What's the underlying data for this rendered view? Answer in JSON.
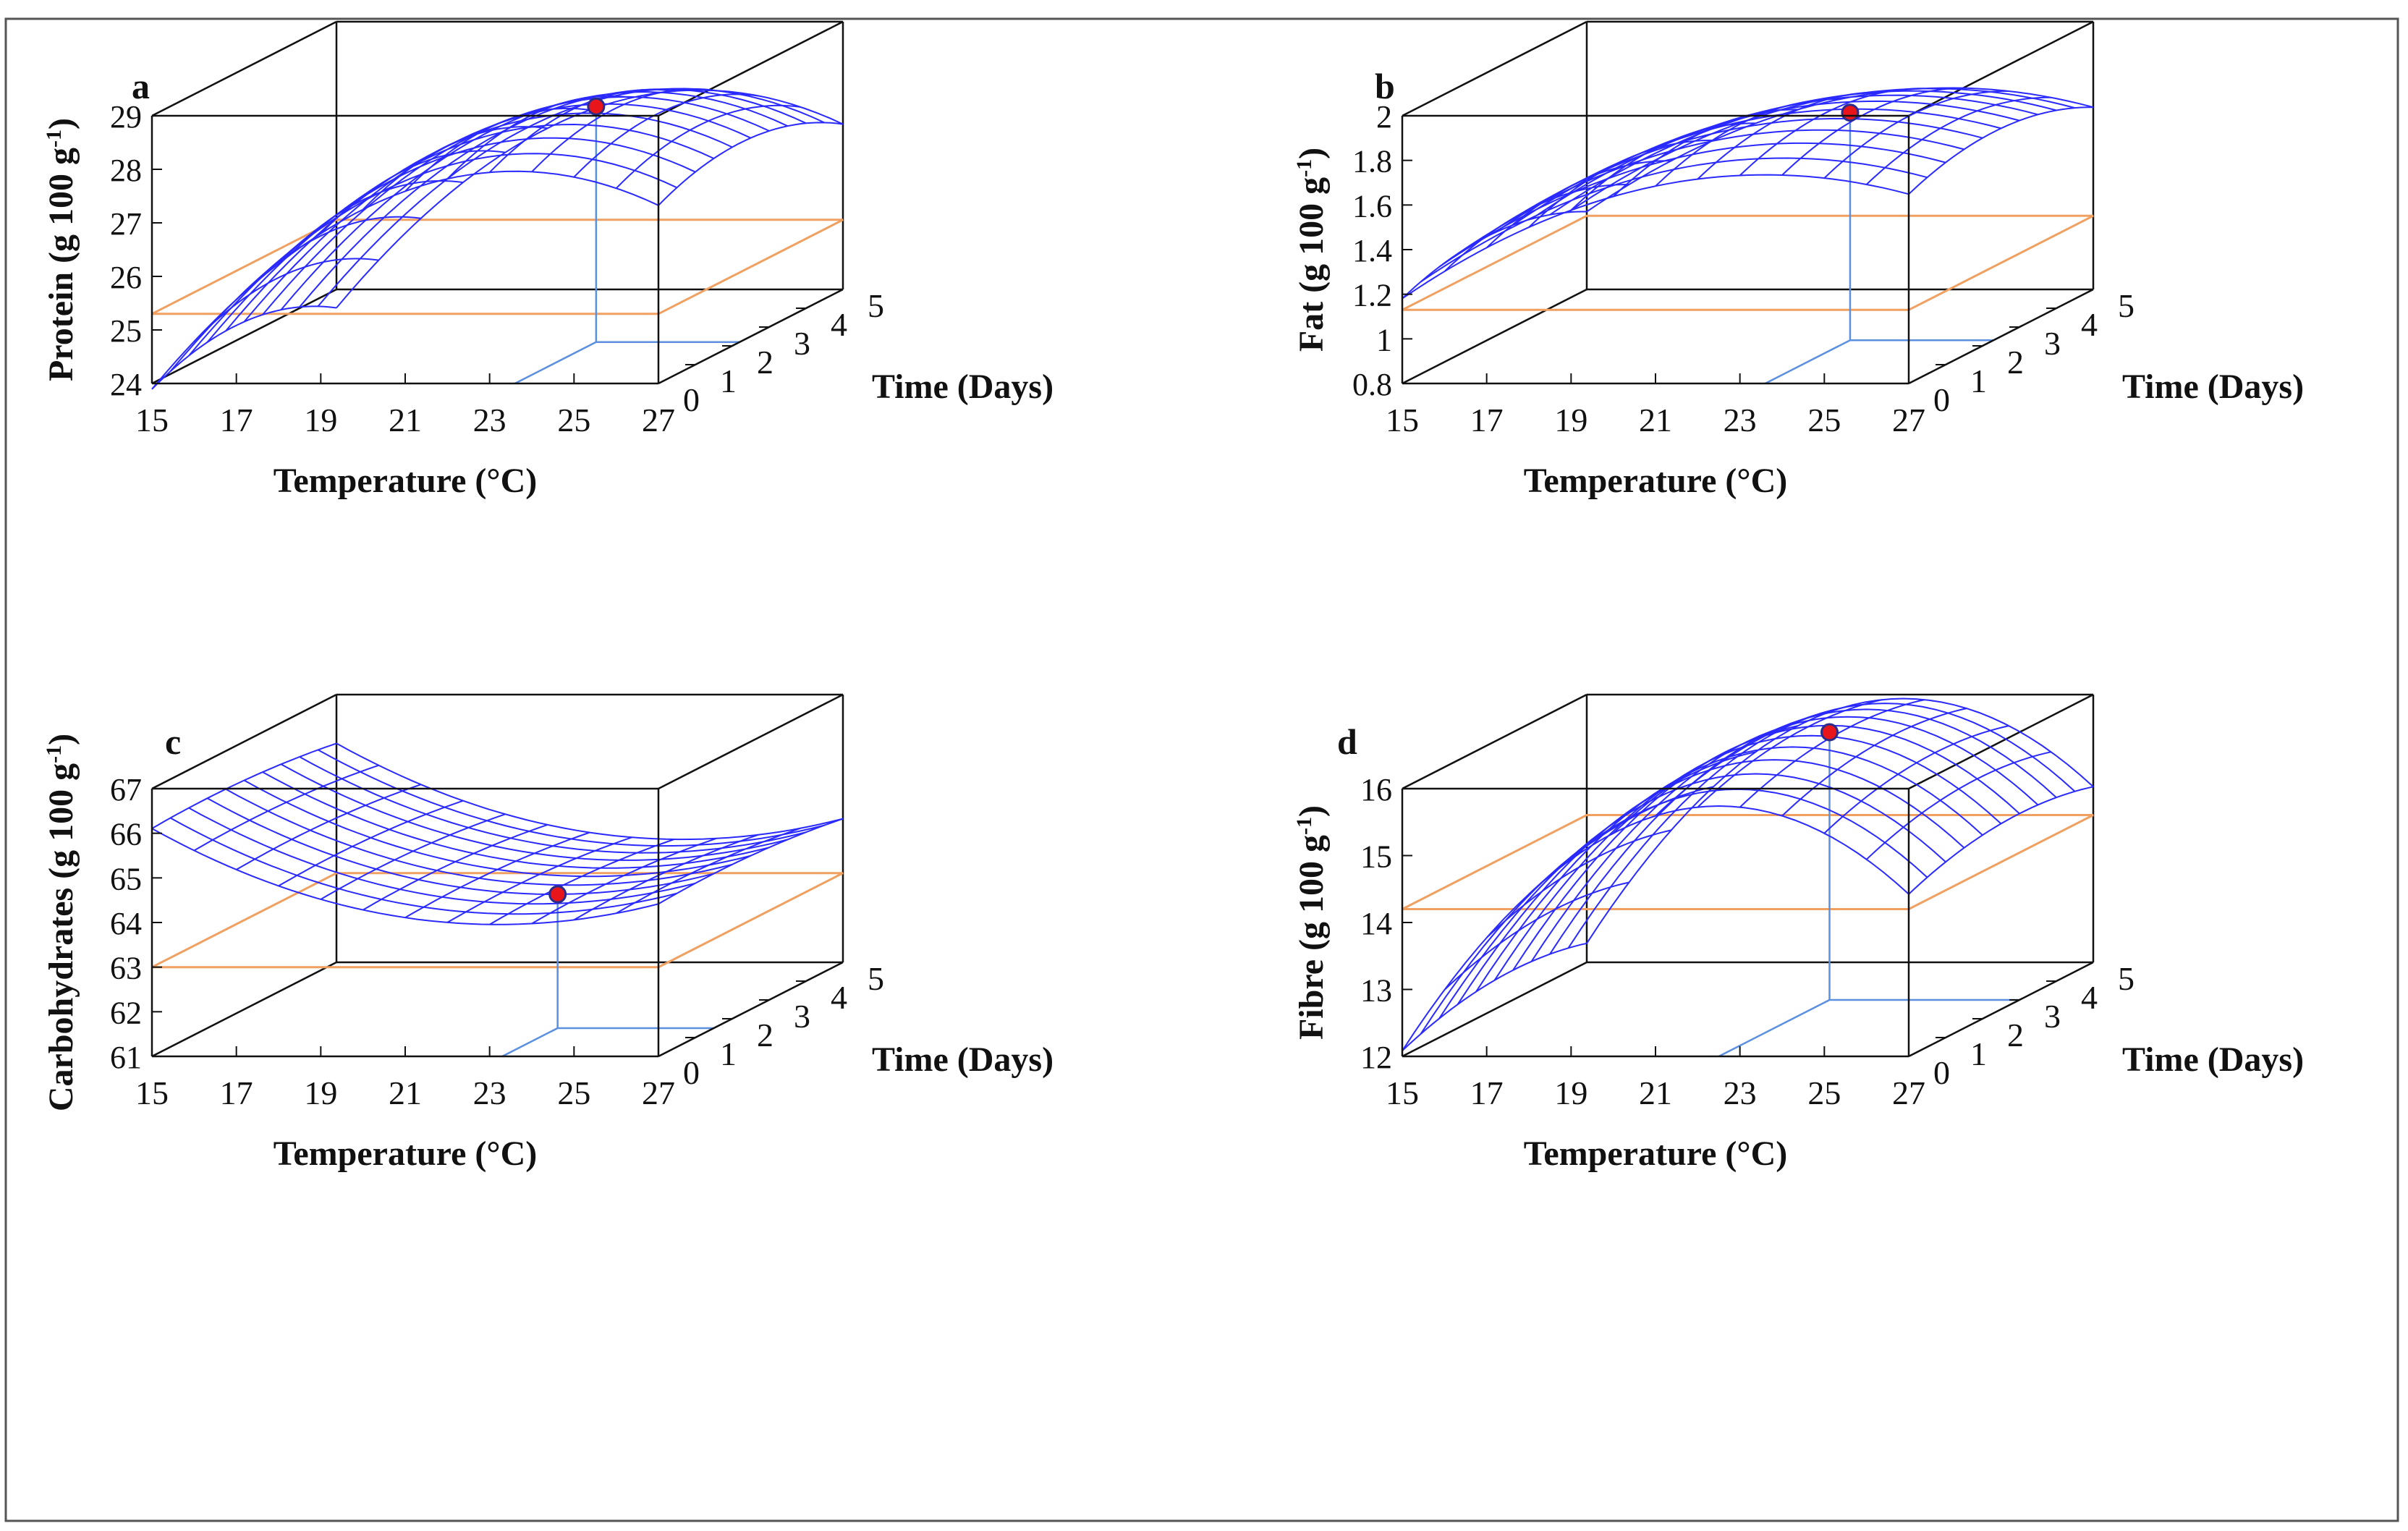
{
  "figure": {
    "page_color": "#ffffff",
    "frame_color": "#555555"
  },
  "colors": {
    "surface": "#2a2aff",
    "plane": "#f0a060",
    "drop": "#5b8fe0",
    "marker": "#e8161b",
    "marker_edge": "#2b2b8a",
    "box": "#111111"
  },
  "axes_common": {
    "xlabel": "Temperature (°C)",
    "ylabel_x": "Time (Days)",
    "x_ticks": [
      "15",
      "17",
      "19",
      "21",
      "23",
      "25",
      "27"
    ],
    "t_ticks": [
      "0",
      "1",
      "2",
      "3",
      "4",
      "5"
    ],
    "x_range": [
      15,
      27
    ],
    "t_range": [
      0,
      5
    ]
  },
  "chart_data": [
    {
      "type": "surface3d",
      "panel_label": "a",
      "zlabel_main": "Protein (g 100 g",
      "zlabel_sup": "-1",
      "zlabel_end": ")",
      "z_ticks": [
        "24",
        "25",
        "26",
        "27",
        "28",
        "29"
      ],
      "z_range": [
        24,
        29
      ],
      "surface_model": {
        "type": "quadratic",
        "z0": 28.35,
        "T0": 23.6,
        "d0": 2.2,
        "a": 0.055,
        "b": 0.08,
        "c": 0
      },
      "plane_z": 25.3,
      "optimum": {
        "temperature": 23.6,
        "time": 2.2,
        "value": 28.4
      }
    },
    {
      "type": "surface3d",
      "panel_label": "b",
      "zlabel_main": "Fat (g 100 g",
      "zlabel_sup": "-1",
      "zlabel_end": ")",
      "z_ticks": [
        "0.8",
        "1",
        "1.2",
        "1.4",
        "1.6",
        "1.8",
        "2"
      ],
      "z_range": [
        0.8,
        2
      ],
      "surface_model": {
        "type": "quadratic",
        "z0": 1.82,
        "T0": 23.6,
        "d0": 2.3,
        "a": 0.0075,
        "b": 0.016,
        "c": 0
      },
      "plane_z": 1.13,
      "optimum": {
        "temperature": 23.6,
        "time": 2.3,
        "value": 1.82
      }
    },
    {
      "type": "surface3d",
      "panel_label": "c",
      "zlabel_main": "Carbohydrates (g 100 g",
      "zlabel_sup": "-1",
      "zlabel_end": ")",
      "z_ticks": [
        "61",
        "62",
        "63",
        "64",
        "65",
        "66",
        "67"
      ],
      "z_range": [
        61,
        67
      ],
      "surface_model": {
        "type": "saddle",
        "z0": 64.0,
        "T0": 23.2,
        "d0": 1.5,
        "a": 0.032,
        "b": 0.02,
        "c": -0.3
      },
      "plane_z": 63.0,
      "optimum": {
        "temperature": 23.3,
        "time": 1.5,
        "value": 64.0
      }
    },
    {
      "type": "surface3d",
      "panel_label": "d",
      "zlabel_main": "Fibre (g 100 g",
      "zlabel_sup": "-1",
      "zlabel_end": ")",
      "z_ticks": [
        "12",
        "13",
        "14",
        "15",
        "16"
      ],
      "z_range": [
        12,
        16
      ],
      "surface_model": {
        "type": "quadratic",
        "z0": 16.1,
        "T0": 22.5,
        "d0": 3.0,
        "a": 0.065,
        "b": 0.04,
        "c": 0
      },
      "plane_z": 14.2,
      "optimum": {
        "temperature": 22.5,
        "time": 3.0,
        "value": 16.0
      }
    }
  ]
}
